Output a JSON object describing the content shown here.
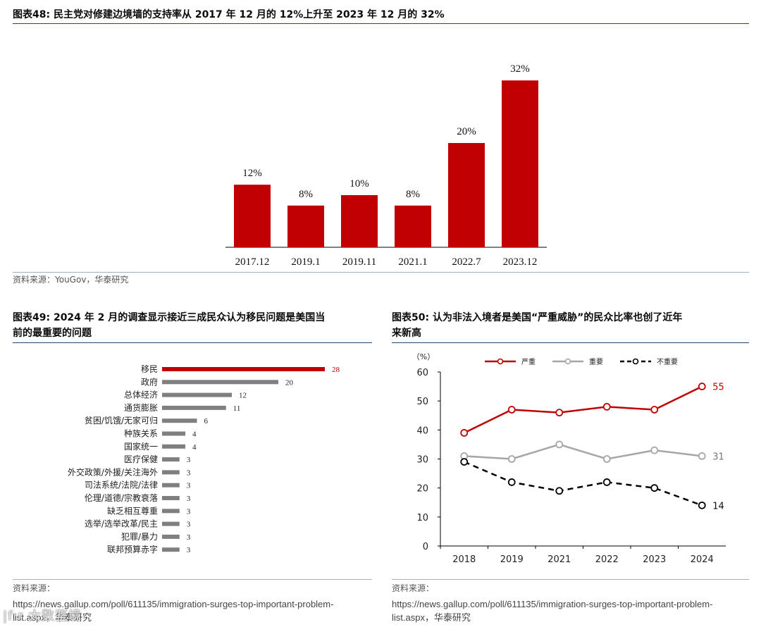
{
  "fig48": {
    "title": "图表48:  民主党对修建边境墙的支持率从 2017 年 12 月的 12%上升至 2023 年 12 月的 32%",
    "source": "资料来源：YouGov，华泰研究"
  },
  "fig49": {
    "title_line1": "图表49:  2024 年 2 月的调查显示接近三成民众认为移民问题是美国当",
    "title_line2": "前的最重要的问题",
    "source_label": "资料来源：",
    "source_url_line1": "https://news.gallup.com/poll/611135/immigration-surges-top-important-problem-",
    "source_url_line2": "list.aspx，华泰研究"
  },
  "fig50": {
    "title_line1": "图表50:  认为非法入境者是美国“严重威胁”的民众比率也创了近年",
    "title_line2": "来新高",
    "source_label": "资料来源：",
    "source_url_line1": "https://news.gallup.com/poll/611135/immigration-surges-top-important-problem-",
    "source_url_line2": "list.aspx，华泰研究"
  },
  "watermark": "|f:r 大数鉴境",
  "colors": {
    "red": "#c00000",
    "gray": "#7f7f7f",
    "lightgray": "#a6a6a6",
    "black": "#000000",
    "rule": "#27446b"
  },
  "chart_data": [
    {
      "type": "bar",
      "title": "民主党对修建边境墙的支持率",
      "categories": [
        "2017.12",
        "2019.1",
        "2019.11",
        "2021.1",
        "2022.7",
        "2023.12"
      ],
      "values": [
        12,
        8,
        10,
        8,
        20,
        32
      ],
      "data_labels": [
        "12%",
        "8%",
        "10%",
        "8%",
        "20%",
        "32%"
      ],
      "ylim": [
        0,
        35
      ],
      "xlabel": "",
      "ylabel": ""
    },
    {
      "type": "bar",
      "orientation": "horizontal",
      "categories": [
        "移民",
        "政府",
        "总体经济",
        "通货膨胀",
        "贫困/饥饿/无家可归",
        "种族关系",
        "国家统一",
        "医疗保健",
        "外交政策/外援/关注海外",
        "司法系统/法院/法律",
        "伦理/道德/宗教衰落",
        "缺乏相互尊重",
        "选举/选举改革/民主",
        "犯罪/暴力",
        "联邦预算赤字"
      ],
      "values": [
        28,
        20,
        12,
        11,
        6,
        4,
        4,
        3,
        3,
        3,
        3,
        3,
        3,
        3,
        3
      ],
      "highlight": "移民",
      "xlim": [
        0,
        30
      ]
    },
    {
      "type": "line",
      "ylabel": "（%）",
      "x": [
        "2018",
        "2019",
        "2021",
        "2022",
        "2023",
        "2024"
      ],
      "ylim": [
        0,
        60
      ],
      "yticks": [
        "0",
        "10",
        "20",
        "30",
        "40",
        "50",
        "60"
      ],
      "legend_position": "top",
      "series": [
        {
          "name": "严重",
          "values": [
            39,
            47,
            46,
            48,
            47,
            55
          ],
          "end_label": "55"
        },
        {
          "name": "重要",
          "values": [
            31,
            30,
            35,
            30,
            33,
            31
          ],
          "end_label": "31"
        },
        {
          "name": "不重要",
          "values": [
            29,
            22,
            19,
            22,
            20,
            14
          ],
          "end_label": "14"
        }
      ]
    }
  ]
}
